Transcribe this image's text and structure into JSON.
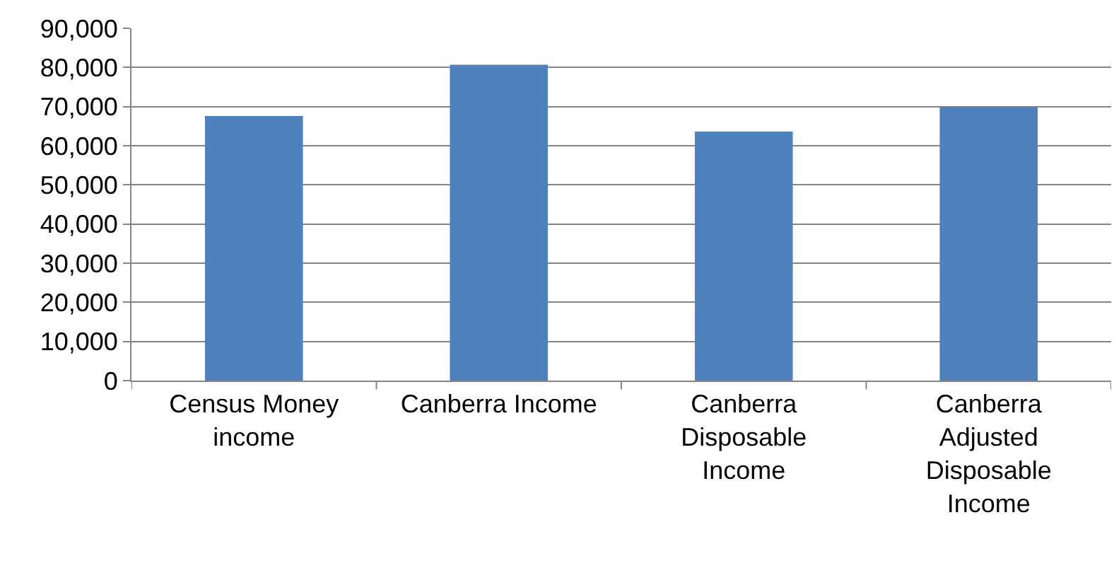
{
  "chart_data": {
    "type": "bar",
    "categories": [
      "Census Money income",
      "Canberra Income",
      "Canberra Disposable Income",
      "Canberra Adjusted Disposable Income"
    ],
    "values": [
      67600,
      80700,
      63600,
      69900
    ],
    "color": "#4f81bd",
    "ylim": [
      0,
      90000
    ],
    "yticks": [
      {
        "value": 0,
        "label": "0"
      },
      {
        "value": 10000,
        "label": "10,000"
      },
      {
        "value": 20000,
        "label": "20,000"
      },
      {
        "value": 30000,
        "label": "30,000"
      },
      {
        "value": 40000,
        "label": "40,000"
      },
      {
        "value": 50000,
        "label": "50,000"
      },
      {
        "value": 60000,
        "label": "60,000"
      },
      {
        "value": 70000,
        "label": "70,000"
      },
      {
        "value": 80000,
        "label": "80,000"
      },
      {
        "value": 90000,
        "label": "90,000"
      }
    ],
    "grid": "y"
  }
}
